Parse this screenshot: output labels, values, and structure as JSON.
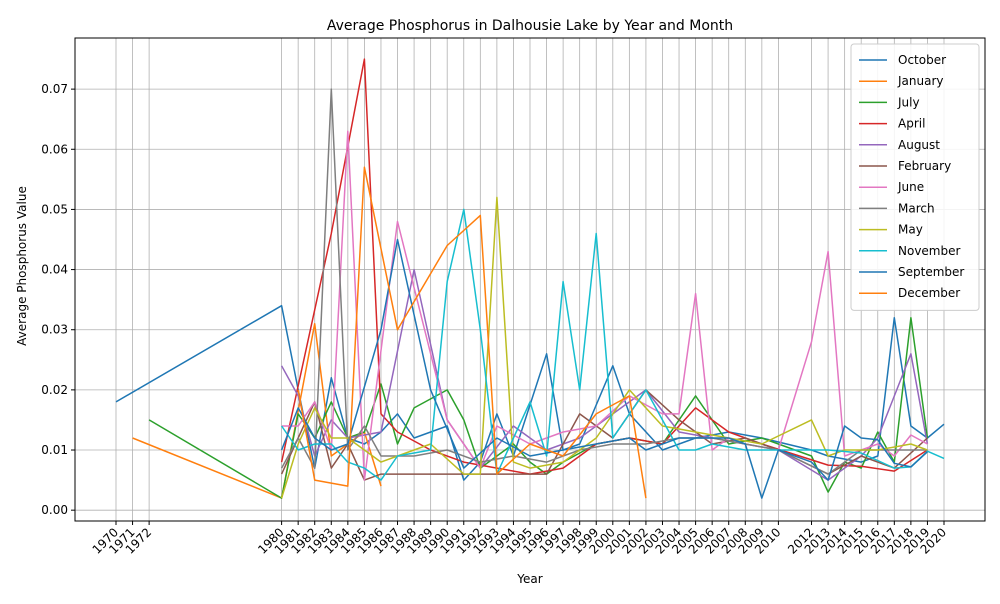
{
  "chart_data": {
    "type": "line",
    "title": "Average Phosphorus in Dalhousie Lake by Year and Month",
    "xlabel": "Year",
    "ylabel": "Average Phosphorus Value",
    "ylim": [
      -0.0018,
      0.0785
    ],
    "y_ticks": [
      0.0,
      0.01,
      0.02,
      0.03,
      0.04,
      0.05,
      0.06,
      0.07
    ],
    "y_tick_labels": [
      "0.00",
      "0.01",
      "0.02",
      "0.03",
      "0.04",
      "0.05",
      "0.06",
      "0.07"
    ],
    "x_ticks": [
      "1970",
      "1971",
      "1972",
      "1980",
      "1981",
      "1982",
      "1983",
      "1984",
      "1985",
      "1986",
      "1987",
      "1988",
      "1989",
      "1990",
      "1991",
      "1992",
      "1993",
      "1994",
      "1995",
      "1996",
      "1997",
      "1998",
      "1999",
      "2000",
      "2001",
      "2002",
      "2003",
      "2004",
      "2005",
      "2006",
      "2007",
      "2008",
      "2009",
      "2010",
      "2012",
      "2013",
      "2014",
      "2015",
      "2016",
      "2017",
      "2018",
      "2019",
      "2020"
    ],
    "grid": true,
    "legend_position": "upper-right",
    "series": [
      {
        "name": "October",
        "color": "#1f77b4",
        "x": [
          "1970",
          "1980",
          "1981",
          "1982",
          "1983",
          "1984",
          "1985",
          "1986",
          "1987",
          "1988",
          "1990",
          "1991",
          "1992",
          "1993",
          "1994",
          "1996",
          "1997",
          "1998",
          "2000",
          "2001",
          "2003",
          "2005",
          "2007",
          "2009",
          "2012",
          "2013",
          "2015",
          "2016",
          "2017",
          "2018",
          "2019",
          "2020"
        ],
        "y": [
          0.018,
          0.034,
          0.02,
          0.007,
          0.022,
          0.012,
          0.011,
          0.013,
          0.016,
          0.012,
          0.014,
          0.005,
          0.008,
          0.016,
          0.009,
          0.026,
          0.01,
          0.011,
          0.024,
          0.016,
          0.01,
          0.012,
          0.013,
          0.012,
          0.01,
          0.009,
          0.008,
          0.009,
          0.032,
          0.014,
          0.012,
          0.0143
        ]
      },
      {
        "name": "January",
        "color": "#ff7f0e",
        "x": [
          "1971",
          "1980",
          "1982",
          "1983",
          "1985",
          "1986"
        ],
        "y": [
          0.012,
          0.002,
          0.031,
          0.009,
          0.013,
          0.004
        ]
      },
      {
        "name": "July",
        "color": "#2ca02c",
        "x": [
          "1972",
          "1980",
          "1981",
          "1982",
          "1983",
          "1984",
          "1985",
          "1986",
          "1987",
          "1988",
          "1990",
          "1991",
          "1992",
          "1993",
          "1994",
          "1995",
          "1996",
          "1997",
          "1999",
          "2001",
          "2003",
          "2005",
          "2007",
          "2009",
          "2012",
          "2013",
          "2014",
          "2015",
          "2016",
          "2017",
          "2018",
          "2019"
        ],
        "y": [
          0.015,
          0.002,
          0.016,
          0.012,
          0.018,
          0.012,
          0.013,
          0.021,
          0.011,
          0.017,
          0.02,
          0.015,
          0.007,
          0.009,
          0.011,
          0.008,
          0.006,
          0.008,
          0.011,
          0.012,
          0.011,
          0.019,
          0.011,
          0.012,
          0.009,
          0.003,
          0.008,
          0.007,
          0.013,
          0.008,
          0.032,
          0.012
        ]
      },
      {
        "name": "April",
        "color": "#d62728",
        "x": [
          "1980",
          "1983",
          "1985",
          "1986",
          "1987",
          "1989",
          "1991",
          "1993",
          "1995",
          "1997",
          "1999",
          "2001",
          "2003",
          "2005",
          "2007",
          "2009",
          "2013",
          "2015",
          "2017",
          "2019"
        ],
        "y": [
          0.008,
          0.046,
          0.075,
          0.016,
          0.013,
          0.01,
          0.008,
          0.007,
          0.006,
          0.007,
          0.011,
          0.012,
          0.011,
          0.017,
          0.013,
          0.011,
          0.0075,
          0.0073,
          0.0065,
          0.01
        ]
      },
      {
        "name": "August",
        "color": "#9467bd",
        "x": [
          "1980",
          "1981",
          "1982",
          "1983",
          "1984",
          "1986",
          "1988",
          "1990",
          "1992",
          "1994",
          "1996",
          "1998",
          "2000",
          "2002",
          "2004",
          "2006",
          "2008",
          "2010",
          "2013",
          "2015",
          "2016",
          "2018",
          "2019"
        ],
        "y": [
          0.024,
          0.019,
          0.009,
          0.015,
          0.012,
          0.013,
          0.04,
          0.015,
          0.007,
          0.014,
          0.01,
          0.012,
          0.016,
          0.02,
          0.013,
          0.012,
          0.011,
          0.01,
          0.005,
          0.009,
          0.012,
          0.026,
          0.011
        ]
      },
      {
        "name": "February",
        "color": "#8c564b",
        "x": [
          "1980",
          "1982",
          "1983",
          "1984",
          "1985",
          "1986",
          "1987",
          "1990",
          "1992",
          "1994",
          "1996",
          "1998",
          "2000",
          "2002",
          "2004",
          "2006",
          "2008",
          "2010",
          "2013",
          "2015",
          "2017",
          "2019"
        ],
        "y": [
          0.006,
          0.018,
          0.007,
          0.011,
          0.005,
          0.006,
          0.006,
          0.006,
          0.006,
          0.006,
          0.006,
          0.016,
          0.012,
          0.02,
          0.015,
          0.011,
          0.012,
          0.01,
          0.006,
          0.009,
          0.007,
          0.012
        ]
      },
      {
        "name": "June",
        "color": "#e377c2",
        "x": [
          "1980",
          "1981",
          "1982",
          "1983",
          "1984",
          "1985",
          "1987",
          "1990",
          "1992",
          "1993",
          "1995",
          "1997",
          "1999",
          "2001",
          "2003",
          "2004",
          "2005",
          "2006",
          "2007",
          "2008",
          "2010",
          "2012",
          "2013",
          "2014",
          "2016",
          "2017",
          "2018",
          "2019"
        ],
        "y": [
          0.014,
          0.014,
          0.018,
          0.01,
          0.063,
          0.005,
          0.048,
          0.015,
          0.007,
          0.014,
          0.011,
          0.013,
          0.014,
          0.019,
          0.016,
          0.016,
          0.036,
          0.01,
          0.012,
          0.011,
          0.01,
          0.028,
          0.043,
          0.009,
          0.011,
          0.009,
          0.0125,
          0.011
        ]
      },
      {
        "name": "March",
        "color": "#7f7f7f",
        "x": [
          "1980",
          "1981",
          "1982",
          "1983",
          "1984",
          "1985",
          "1986",
          "1987",
          "1988",
          "1990",
          "1992",
          "1994",
          "1996",
          "1998",
          "2000",
          "2002",
          "2004",
          "2006",
          "2008",
          "2010",
          "2013",
          "2015",
          "2017",
          "2019"
        ],
        "y": [
          0.007,
          0.012,
          0.007,
          0.07,
          0.01,
          0.014,
          0.009,
          0.009,
          0.009,
          0.01,
          0.008,
          0.009,
          0.008,
          0.01,
          0.011,
          0.011,
          0.012,
          0.012,
          0.011,
          0.01,
          0.006,
          0.01,
          0.01,
          0.01
        ]
      },
      {
        "name": "May",
        "color": "#bcbd22",
        "x": [
          "1980",
          "1981",
          "1982",
          "1983",
          "1984",
          "1985",
          "1986",
          "1987",
          "1989",
          "1991",
          "1992",
          "1993",
          "1994",
          "1995",
          "1997",
          "1999",
          "2001",
          "2003",
          "2005",
          "2007",
          "2009",
          "2012",
          "2013",
          "2014",
          "2016",
          "2018",
          "2019"
        ],
        "y": [
          0.002,
          0.011,
          0.017,
          0.012,
          0.012,
          0.01,
          0.008,
          0.009,
          0.011,
          0.006,
          0.006,
          0.052,
          0.008,
          0.007,
          0.008,
          0.012,
          0.02,
          0.014,
          0.013,
          0.012,
          0.011,
          0.015,
          0.009,
          0.01,
          0.01,
          0.011,
          0.01
        ]
      },
      {
        "name": "November",
        "color": "#17becf",
        "x": [
          "1980",
          "1981",
          "1982",
          "1983",
          "1984",
          "1985",
          "1986",
          "1987",
          "1989",
          "1990",
          "1991",
          "1992",
          "1993",
          "1995",
          "1996",
          "1997",
          "1998",
          "1999",
          "2000",
          "2001",
          "2002",
          "2004",
          "2005",
          "2006",
          "2008",
          "2010",
          "2013",
          "2015",
          "2017",
          "2018",
          "2019",
          "2020"
        ],
        "y": [
          0.014,
          0.01,
          0.011,
          0.011,
          0.008,
          0.007,
          0.005,
          0.009,
          0.01,
          0.038,
          0.05,
          0.03,
          0.006,
          0.018,
          0.009,
          0.038,
          0.02,
          0.046,
          0.012,
          0.016,
          0.02,
          0.01,
          0.01,
          0.011,
          0.01,
          0.01,
          0.01,
          0.0095,
          0.007,
          0.0072,
          0.0098,
          0.0086
        ]
      },
      {
        "name": "September",
        "color": "#1f77b4",
        "x": [
          "1980",
          "1981",
          "1982",
          "1983",
          "1984",
          "1986",
          "1987",
          "1989",
          "1991",
          "1993",
          "1995",
          "1997",
          "1999",
          "2001",
          "2002",
          "2003",
          "2004",
          "2005",
          "2006",
          "2007",
          "2008",
          "2009",
          "2010",
          "2012",
          "2013",
          "2014",
          "2015",
          "2016",
          "2017",
          "2018",
          "2019"
        ],
        "y": [
          0.01,
          0.017,
          0.012,
          0.01,
          0.011,
          0.03,
          0.045,
          0.02,
          0.007,
          0.012,
          0.009,
          0.01,
          0.011,
          0.012,
          0.01,
          0.011,
          0.012,
          0.012,
          0.012,
          0.012,
          0.011,
          0.002,
          0.01,
          0.008,
          0.005,
          0.014,
          0.012,
          0.0117,
          0.0078,
          0.0072,
          0.0097
        ]
      },
      {
        "name": "December",
        "color": "#ff7f0e",
        "x": [
          "1981",
          "1982",
          "1984",
          "1985",
          "1987",
          "1990",
          "1992",
          "1993",
          "1995",
          "1997",
          "1999",
          "2001",
          "2002"
        ],
        "y": [
          0.02,
          0.005,
          0.004,
          0.057,
          0.03,
          0.044,
          0.049,
          0.006,
          0.011,
          0.009,
          0.016,
          0.019,
          0.002
        ]
      }
    ]
  }
}
